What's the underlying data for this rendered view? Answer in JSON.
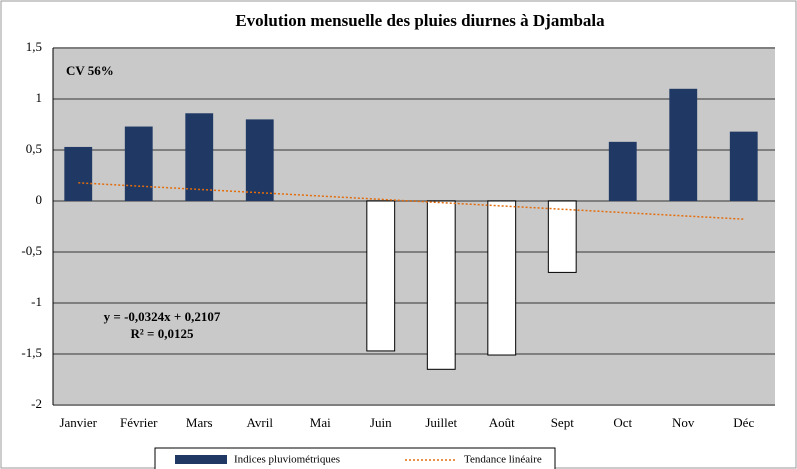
{
  "chart_data": {
    "type": "bar",
    "title": "Evolution mensuelle des pluies diurnes à Djambala",
    "categories": [
      "Janvier",
      "Février",
      "Mars",
      "Avril",
      "Mai",
      "Juin",
      "Juillet",
      "Août",
      "Sept",
      "Oct",
      "Nov",
      "Déc"
    ],
    "series": [
      {
        "name": "Indices pluviométriques",
        "color": "#1f3864",
        "negative_color": "#ffffff",
        "values": [
          0.53,
          0.73,
          0.86,
          0.8,
          0,
          -1.47,
          -1.65,
          -1.51,
          -0.7,
          0.58,
          1.1,
          0.68
        ]
      }
    ],
    "trend": {
      "name": "Tendance linéaire",
      "slope": -0.0324,
      "intercept": 0.2107,
      "color": "#e46c0a"
    },
    "annotations": [
      "CV   56%",
      "y = -0,0324x + 0,2107",
      "R² = 0,0125"
    ],
    "ylim": [
      -2,
      1.5
    ],
    "yticks": [
      -2,
      {
        "value": -1.5,
        "label": "-1,5"
      },
      -1,
      {
        "value": -0.5,
        "label": "-0,5"
      },
      0,
      {
        "value": 0.5,
        "label": "0,5"
      },
      1,
      {
        "value": 1.5,
        "label": "1,5"
      }
    ],
    "grid": true
  }
}
